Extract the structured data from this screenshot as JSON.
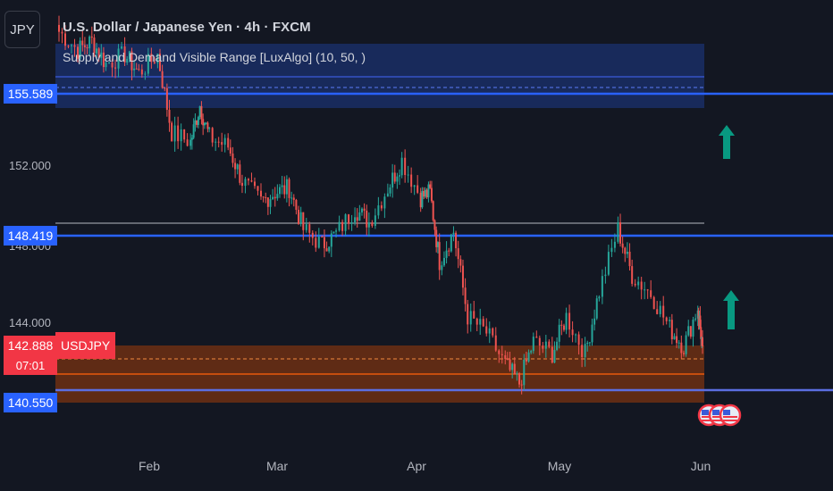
{
  "header": {
    "symbol_button": "JPY",
    "title": "U.S. Dollar / Japanese Yen · 4h · FXCM",
    "indicator_label": "Supply and Demand Visible Range [LuxAlgo] (10, 50, )"
  },
  "badges": {
    "supply_level": "155.589",
    "mid_level": "148.419",
    "last_price": "142.888",
    "countdown": "07:01",
    "demand_level": "140.550",
    "symbol_tag": "USDJPY"
  },
  "colors": {
    "background": "#131722",
    "up_candle": "#26a69a",
    "down_candle": "#ef5350",
    "level_line": "#2962ff",
    "supply_zone": "#1e3a8a",
    "demand_zone": "#7a3312",
    "arrow": "#089981"
  },
  "icons": [
    "up-arrow-icon",
    "us-flag-event-icon"
  ],
  "chart_data": {
    "type": "line",
    "title": "U.S. Dollar / Japanese Yen · 4h · FXCM",
    "y_ticks": [
      "152.000",
      "148.000",
      "144.000"
    ],
    "x_ticks": [
      "Feb",
      "Mar",
      "Apr",
      "May",
      "Jun"
    ],
    "ylim": [
      139.6,
      157.2
    ],
    "x": [
      "2025-01-13",
      "2025-01-17",
      "2025-01-20",
      "2025-01-23",
      "2025-01-27",
      "2025-01-30",
      "2025-02-03",
      "2025-02-06",
      "2025-02-10",
      "2025-02-12",
      "2025-02-14",
      "2025-02-18",
      "2025-02-21",
      "2025-02-25",
      "2025-02-28",
      "2025-03-03",
      "2025-03-06",
      "2025-03-10",
      "2025-03-13",
      "2025-03-17",
      "2025-03-20",
      "2025-03-24",
      "2025-03-27",
      "2025-03-31",
      "2025-04-02",
      "2025-04-04",
      "2025-04-07",
      "2025-04-10",
      "2025-04-14",
      "2025-04-18",
      "2025-04-21",
      "2025-04-24",
      "2025-04-28",
      "2025-05-01",
      "2025-05-05",
      "2025-05-08",
      "2025-05-12",
      "2025-05-15",
      "2025-05-19",
      "2025-05-23",
      "2025-05-26",
      "2025-05-29",
      "2025-05-30"
    ],
    "series": [
      {
        "values": [
          156.6,
          155.8,
          156.2,
          155.2,
          155.6,
          154.8,
          155.6,
          152.2,
          151.8,
          153.4,
          152.0,
          151.6,
          150.1,
          149.2,
          149.6,
          149.8,
          148.0,
          147.3,
          147.8,
          148.9,
          148.3,
          149.8,
          151.0,
          149.4,
          149.6,
          146.6,
          147.9,
          144.2,
          143.5,
          142.1,
          141.3,
          143.1,
          142.6,
          144.2,
          142.6,
          145.3,
          148.0,
          146.0,
          145.2,
          143.7,
          142.9,
          144.6,
          142.9
        ]
      }
    ],
    "annotations": {
      "supply_zone_price": 155.589,
      "mid_line_price": 148.419,
      "demand_zone_price": 140.55,
      "last_price": 142.888
    },
    "grid": false
  }
}
